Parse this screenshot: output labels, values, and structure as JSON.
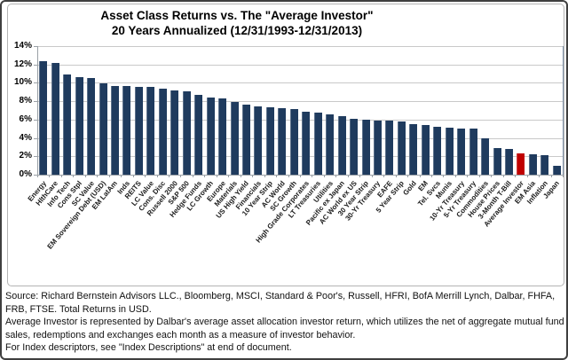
{
  "chart_data": {
    "type": "bar",
    "title": "Asset Class Returns vs. The \"Average Investor\"",
    "subtitle": "20 Years Annualized (12/31/1993-12/31/2013)",
    "categories": [
      "Energy",
      "HlthCare",
      "Info Tech",
      "Cons Stpl",
      "SC Value",
      "EM Sovereign Debt (USD)",
      "EM LatAm",
      "Inds",
      "REITS",
      "LC Value",
      "Cons. Disc",
      "Russell 2000",
      "S&P 500",
      "Hedge Funds",
      "LC Growth",
      "Europe",
      "Materials",
      "US High Yield",
      "Financials",
      "10 Year Strip",
      "AC World",
      "SC Growth",
      "High Grade Corporates",
      "LT Treasuries",
      "Utilities",
      "Pacific ex Japan",
      "AC World ex US",
      "30 Year Strip",
      "30-Yr Treasury",
      "EAFE",
      "5 Year Strip",
      "Gold",
      "EM",
      "Tel. Svcs",
      "Munis",
      "10-Yr Treasury",
      "5-Yr Treasury",
      "Commodities",
      "House Prices",
      "3-Month T-Bill",
      "Average Investor",
      "EM Asia",
      "Inflation",
      "Japan"
    ],
    "values": [
      12.4,
      12.2,
      10.9,
      10.6,
      10.5,
      9.9,
      9.7,
      9.7,
      9.6,
      9.6,
      9.4,
      9.2,
      9.1,
      8.7,
      8.4,
      8.3,
      7.9,
      7.6,
      7.4,
      7.3,
      7.2,
      7.1,
      6.9,
      6.8,
      6.6,
      6.4,
      6.1,
      6.0,
      5.9,
      5.9,
      5.8,
      5.5,
      5.4,
      5.2,
      5.1,
      5.05,
      5.0,
      4.0,
      2.9,
      2.8,
      2.3,
      2.2,
      2.1,
      1.0
    ],
    "highlight_category": "Average Investor",
    "highlight_color": "#C00000",
    "bar_color": "#1F3B5E",
    "ylim": [
      0,
      14
    ],
    "y_ticks": [
      "0%",
      "2%",
      "4%",
      "6%",
      "8%",
      "10%",
      "12%",
      "14%"
    ],
    "grid": true,
    "legend": "none",
    "xlabel": "",
    "ylabel": ""
  },
  "footer": {
    "paragraphs": [
      "Source: Richard Bernstein Advisors LLC., Bloomberg, MSCI, Standard & Poor's, Russell, HFRI, BofA Merrill Lynch, Dalbar, FHFA, FRB, FTSE.  Total Returns in USD.",
      "Average Investor is represented by Dalbar's average asset allocation investor return, which utilizes the net of aggregate mutual fund sales, redemptions and exchanges each month as a measure of investor behavior.",
      "For Index descriptors, see \"Index Descriptions\" at end of document."
    ]
  }
}
